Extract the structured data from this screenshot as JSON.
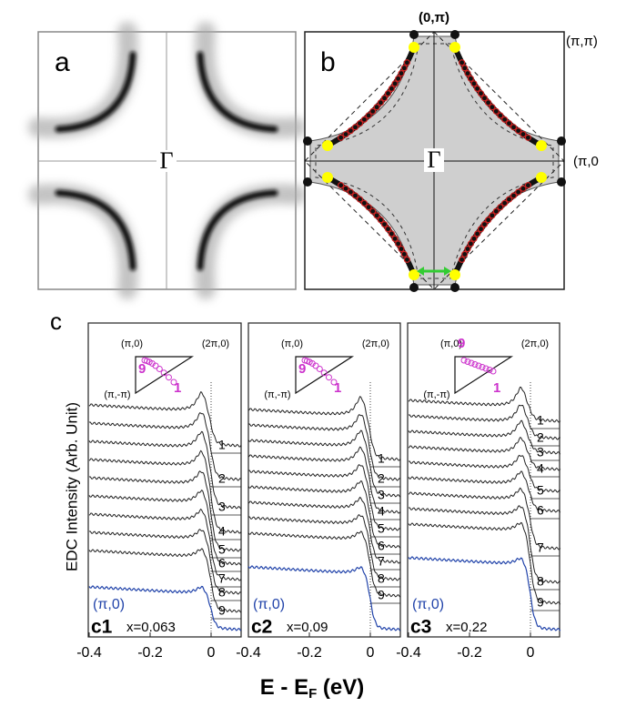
{
  "panel_a": {
    "label": "a",
    "center": "Γ"
  },
  "panel_b": {
    "label": "b",
    "center": "Γ",
    "top_label": "(0,π)",
    "corner_label": "(π,π)",
    "right_label": "(π,0"
  },
  "panel_c": {
    "label": "c",
    "y_axis_label": "EDC Intensity (Arb. Unit)",
    "x_axis_label": {
      "main": "E - E",
      "sub": "F",
      "unit": " (eV)"
    },
    "subpanels": [
      {
        "label": "c1",
        "doping": "x=0.063",
        "reference": "(π,0)",
        "inset": {
          "left": "(π,0)",
          "right": "(2π,0)",
          "bottom": "(π,-π)",
          "start": "9",
          "end": "1"
        },
        "curve_labels": [
          "1",
          "2",
          "3",
          "4",
          "5",
          "6",
          "7",
          "8",
          "9"
        ],
        "x_ticks": [
          "-0.4",
          "-0.2",
          "0"
        ]
      },
      {
        "label": "c2",
        "doping": "x=0.09",
        "reference": "(π,0)",
        "inset": {
          "left": "(π,0)",
          "right": "(2π,0)",
          "bottom": "(π,-π)",
          "start": "9",
          "end": "1"
        },
        "curve_labels": [
          "1",
          "2",
          "3",
          "4",
          "5",
          "6",
          "7",
          "8",
          "9"
        ],
        "x_ticks": [
          "-0.4",
          "-0.2",
          "0"
        ]
      },
      {
        "label": "c3",
        "doping": "x=0.22",
        "reference": "(π,0)",
        "inset": {
          "left": "(π,0)",
          "right": "(2π,0)",
          "bottom": "(π,-π)",
          "start": "9",
          "end": "1"
        },
        "curve_labels": [
          "1",
          "2",
          "3",
          "4",
          "5",
          "6",
          "7",
          "8",
          "9"
        ],
        "x_ticks": [
          "-0.4",
          "-0.2",
          "0"
        ]
      }
    ]
  }
}
